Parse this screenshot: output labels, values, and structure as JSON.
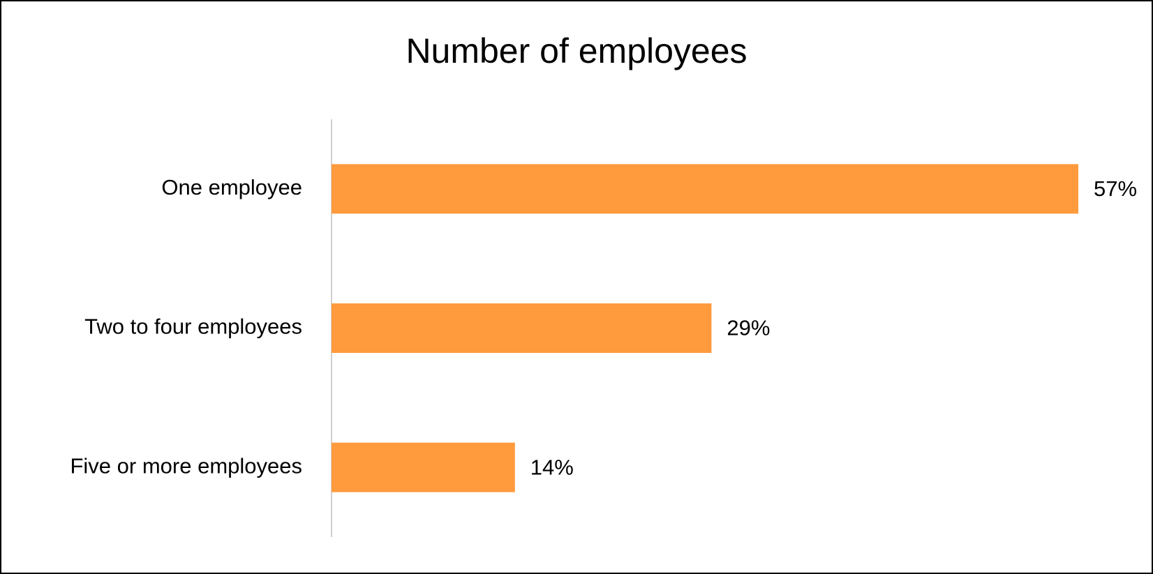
{
  "chart_data": {
    "type": "bar",
    "orientation": "horizontal",
    "title": "Number of employees",
    "categories": [
      "One employee",
      "Two to four employees",
      "Five or more employees"
    ],
    "values": [
      57,
      29,
      14
    ],
    "value_labels": [
      "57%",
      "29%",
      "14%"
    ],
    "color": "#ff9a3d"
  }
}
